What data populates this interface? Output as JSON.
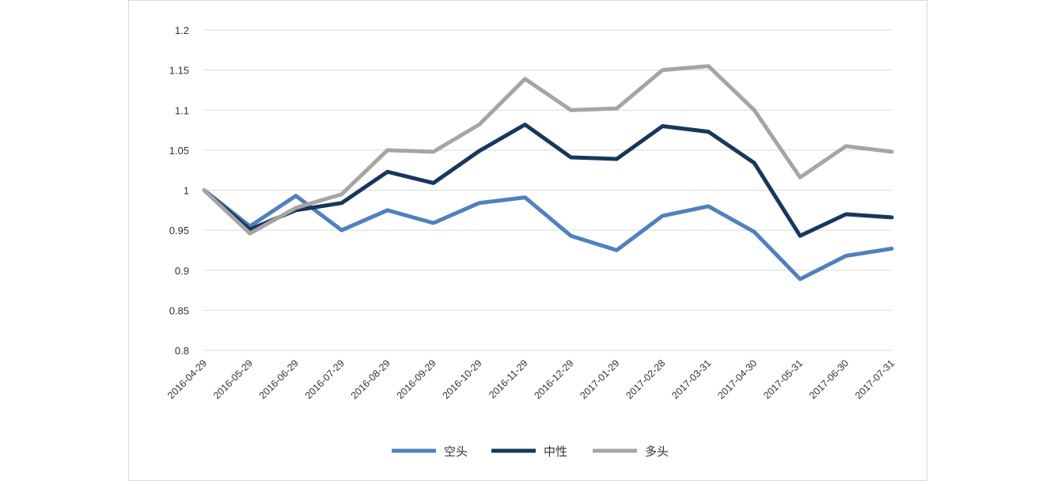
{
  "chart_data": {
    "type": "line",
    "title": "",
    "xlabel": "",
    "ylabel": "",
    "ylim": [
      0.8,
      1.2
    ],
    "yticks": [
      "1.2",
      "1.15",
      "1.1",
      "1.05",
      "1",
      "0.95",
      "0.9",
      "0.85",
      "0.8"
    ],
    "ytick_values": [
      1.2,
      1.15,
      1.1,
      1.05,
      1.0,
      0.95,
      0.9,
      0.85,
      0.8
    ],
    "grid": true,
    "legend_position": "bottom",
    "categories": [
      "2016-04-29",
      "2016-05-29",
      "2016-06-29",
      "2016-07-29",
      "2016-08-29",
      "2016-09-29",
      "2016-10-29",
      "2016-11-29",
      "2016-12-29",
      "2017-01-29",
      "2017-02-28",
      "2017-03-31",
      "2017-04-30",
      "2017-05-31",
      "2017-06-30",
      "2017-07-31"
    ],
    "series": [
      {
        "name": "空头",
        "color": "#4f81bd",
        "values": [
          1.0,
          0.955,
          0.993,
          0.95,
          0.975,
          0.959,
          0.984,
          0.991,
          0.943,
          0.925,
          0.968,
          0.98,
          0.948,
          0.889,
          0.918,
          0.927
        ]
      },
      {
        "name": "中性",
        "color": "#17375e",
        "values": [
          1.0,
          0.951,
          0.975,
          0.984,
          1.023,
          1.009,
          1.049,
          1.082,
          1.041,
          1.039,
          1.08,
          1.073,
          1.034,
          0.943,
          0.97,
          0.966
        ]
      },
      {
        "name": "多头",
        "color": "#a5a5a5",
        "values": [
          1.0,
          0.946,
          0.978,
          0.995,
          1.05,
          1.048,
          1.082,
          1.139,
          1.1,
          1.102,
          1.15,
          1.155,
          1.1,
          1.016,
          1.055,
          1.048
        ]
      }
    ]
  }
}
